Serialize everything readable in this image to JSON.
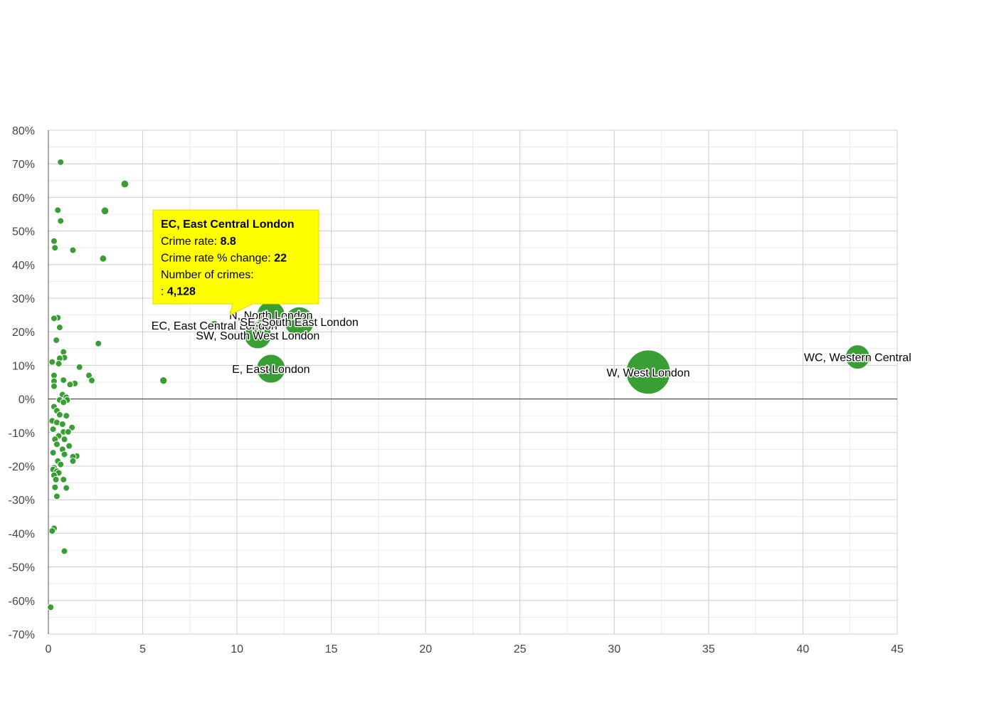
{
  "chart_data": {
    "type": "scatter",
    "title": "",
    "xlabel": "",
    "ylabel": "",
    "xlim": [
      0,
      45
    ],
    "ylim": [
      -70,
      80
    ],
    "x_ticks": [
      0,
      5,
      10,
      15,
      20,
      25,
      30,
      35,
      40,
      45
    ],
    "y_ticks": [
      -70,
      -60,
      -50,
      -40,
      -30,
      -20,
      -10,
      0,
      10,
      20,
      30,
      40,
      50,
      60,
      70,
      80
    ],
    "y_tick_suffix": "%",
    "grid": true,
    "bubble_color": "#2e9a2a",
    "labeled_points": [
      {
        "label": "EC, East Central London",
        "x": 8.8,
        "y": 22,
        "crimes": 4128
      },
      {
        "label": "N, North London",
        "x": 11.8,
        "y": 25,
        "crimes": 40000
      },
      {
        "label": "SE, South East London",
        "x": 13.3,
        "y": 23,
        "crimes": 45000
      },
      {
        "label": "SW, South West London",
        "x": 11.1,
        "y": 19,
        "crimes": 38000
      },
      {
        "label": "E, East London",
        "x": 11.8,
        "y": 9,
        "crimes": 42000
      },
      {
        "label": "W, West London",
        "x": 31.8,
        "y": 8,
        "crimes": 100000
      },
      {
        "label": "WC, Western Central",
        "x": 42.9,
        "y": 12.5,
        "crimes": 30000
      }
    ],
    "points": [
      {
        "x": 0.65,
        "y": 70.5,
        "crimes": 1200
      },
      {
        "x": 4.05,
        "y": 64,
        "crimes": 3000
      },
      {
        "x": 3.0,
        "y": 56,
        "crimes": 3000
      },
      {
        "x": 0.5,
        "y": 56.2,
        "crimes": 800
      },
      {
        "x": 0.65,
        "y": 53,
        "crimes": 1200
      },
      {
        "x": 0.3,
        "y": 47,
        "crimes": 900
      },
      {
        "x": 0.35,
        "y": 45,
        "crimes": 1200
      },
      {
        "x": 1.3,
        "y": 44.3,
        "crimes": 1300
      },
      {
        "x": 2.9,
        "y": 41.8,
        "crimes": 2500
      },
      {
        "x": 0.5,
        "y": 24.2,
        "crimes": 800
      },
      {
        "x": 0.3,
        "y": 24,
        "crimes": 800
      },
      {
        "x": 0.6,
        "y": 21.3,
        "crimes": 1200
      },
      {
        "x": 2.65,
        "y": 16.5,
        "crimes": 1800
      },
      {
        "x": 0.42,
        "y": 17.5,
        "crimes": 900
      },
      {
        "x": 0.8,
        "y": 14,
        "crimes": 2000
      },
      {
        "x": 0.85,
        "y": 12.3,
        "crimes": 1800
      },
      {
        "x": 0.6,
        "y": 12.1,
        "crimes": 1500
      },
      {
        "x": 0.2,
        "y": 11,
        "crimes": 900
      },
      {
        "x": 0.55,
        "y": 10.5,
        "crimes": 1400
      },
      {
        "x": 1.65,
        "y": 9.5,
        "crimes": 1300
      },
      {
        "x": 0.3,
        "y": 7,
        "crimes": 1200
      },
      {
        "x": 2.15,
        "y": 7,
        "crimes": 2000
      },
      {
        "x": 0.8,
        "y": 5.6,
        "crimes": 1500
      },
      {
        "x": 2.3,
        "y": 5.5,
        "crimes": 1600
      },
      {
        "x": 6.1,
        "y": 5.5,
        "crimes": 2800
      },
      {
        "x": 0.3,
        "y": 5.3,
        "crimes": 1000
      },
      {
        "x": 1.4,
        "y": 4.6,
        "crimes": 1800
      },
      {
        "x": 1.15,
        "y": 4.3,
        "crimes": 1300
      },
      {
        "x": 0.3,
        "y": 3.8,
        "crimes": 1100
      },
      {
        "x": 0.75,
        "y": 1.3,
        "crimes": 1400
      },
      {
        "x": 0.95,
        "y": 0.5,
        "crimes": 1200
      },
      {
        "x": 0.6,
        "y": -0.3,
        "crimes": 1200
      },
      {
        "x": 1.0,
        "y": -0.3,
        "crimes": 1300
      },
      {
        "x": 0.8,
        "y": -1,
        "crimes": 1100
      },
      {
        "x": 0.3,
        "y": -2.3,
        "crimes": 1200
      },
      {
        "x": 0.45,
        "y": -3.5,
        "crimes": 1100
      },
      {
        "x": 0.6,
        "y": -4.7,
        "crimes": 1300
      },
      {
        "x": 0.95,
        "y": -5,
        "crimes": 1400
      },
      {
        "x": 0.2,
        "y": -6.5,
        "crimes": 1000
      },
      {
        "x": 0.45,
        "y": -7,
        "crimes": 1100
      },
      {
        "x": 0.75,
        "y": -7.5,
        "crimes": 1300
      },
      {
        "x": 1.25,
        "y": -8.5,
        "crimes": 1400
      },
      {
        "x": 0.25,
        "y": -9,
        "crimes": 1600
      },
      {
        "x": 0.8,
        "y": -9.8,
        "crimes": 1500
      },
      {
        "x": 1.05,
        "y": -9.8,
        "crimes": 1300
      },
      {
        "x": 0.55,
        "y": -11,
        "crimes": 1200
      },
      {
        "x": 0.35,
        "y": -12,
        "crimes": 1600
      },
      {
        "x": 0.85,
        "y": -12,
        "crimes": 1300
      },
      {
        "x": 0.45,
        "y": -13.5,
        "crimes": 1200
      },
      {
        "x": 1.1,
        "y": -14,
        "crimes": 1500
      },
      {
        "x": 0.75,
        "y": -15,
        "crimes": 1500
      },
      {
        "x": 0.25,
        "y": -16,
        "crimes": 900
      },
      {
        "x": 0.85,
        "y": -16.5,
        "crimes": 1300
      },
      {
        "x": 1.5,
        "y": -17,
        "crimes": 2000
      },
      {
        "x": 1.3,
        "y": -17.2,
        "crimes": 1500
      },
      {
        "x": 0.5,
        "y": -18.5,
        "crimes": 1200
      },
      {
        "x": 1.3,
        "y": -18.5,
        "crimes": 1500
      },
      {
        "x": 0.65,
        "y": -19.5,
        "crimes": 1400
      },
      {
        "x": 0.3,
        "y": -20.5,
        "crimes": 1100
      },
      {
        "x": 0.25,
        "y": -21,
        "crimes": 1100
      },
      {
        "x": 0.45,
        "y": -21.5,
        "crimes": 1300
      },
      {
        "x": 0.55,
        "y": -22,
        "crimes": 1300
      },
      {
        "x": 0.3,
        "y": -22.7,
        "crimes": 1100
      },
      {
        "x": 0.4,
        "y": -24,
        "crimes": 1100
      },
      {
        "x": 0.8,
        "y": -24,
        "crimes": 1200
      },
      {
        "x": 0.35,
        "y": -26.3,
        "crimes": 1000
      },
      {
        "x": 0.95,
        "y": -26.5,
        "crimes": 2000
      },
      {
        "x": 0.45,
        "y": -29,
        "crimes": 1200
      },
      {
        "x": 0.3,
        "y": -38.5,
        "crimes": 900
      },
      {
        "x": 0.2,
        "y": -39.3,
        "crimes": 800
      },
      {
        "x": 0.85,
        "y": -45.3,
        "crimes": 1500
      },
      {
        "x": 0.12,
        "y": -62,
        "crimes": 900
      }
    ],
    "tooltip": {
      "title": "EC, East Central London",
      "rows": [
        {
          "label": "Crime rate: ",
          "value": "8.8"
        },
        {
          "label": "Crime rate % change: ",
          "value": "22"
        },
        {
          "label": "Number of crimes:",
          "value": ""
        },
        {
          "label": ": ",
          "value": "4,128"
        }
      ],
      "background": "#ffff00",
      "anchor_x": 8.8,
      "anchor_y": 22
    }
  }
}
